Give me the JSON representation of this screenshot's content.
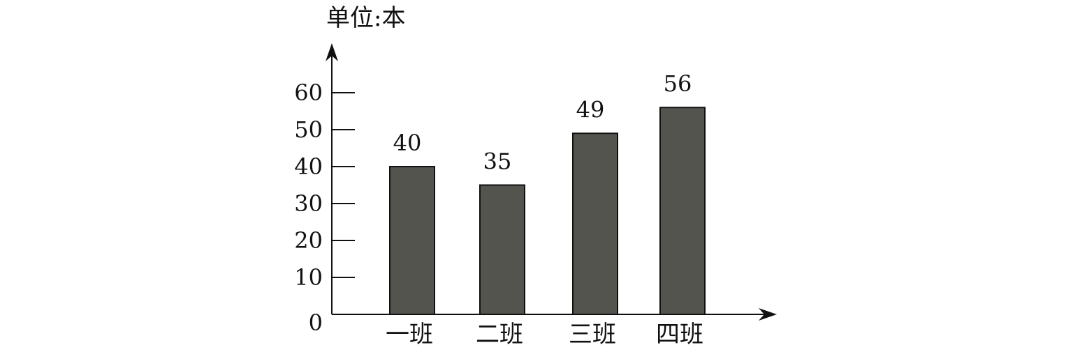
{
  "chart_data": {
    "type": "bar",
    "y_unit_label": "单位:本",
    "categories": [
      "一班",
      "二班",
      "三班",
      "四班"
    ],
    "values": [
      40,
      35,
      49,
      56
    ],
    "data_labels": [
      "40",
      "35",
      "49",
      "56"
    ],
    "y_ticks": [
      0,
      10,
      20,
      30,
      40,
      50,
      60
    ],
    "y_tick_labels": [
      "0",
      "10",
      "20",
      "30",
      "40",
      "50",
      "60"
    ],
    "ylim": [
      0,
      60
    ],
    "grid": false,
    "bar_color": "#54544f",
    "bar_stroke": "#111111"
  }
}
